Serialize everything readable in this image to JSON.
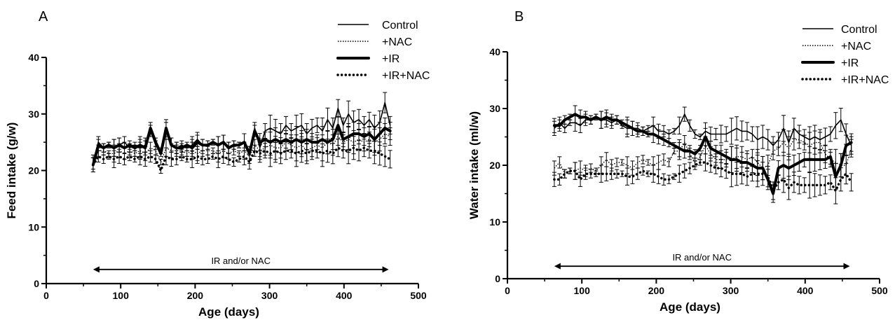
{
  "chart_data": [
    {
      "type": "line",
      "panel_label": "A",
      "xlabel": "Age (days)",
      "ylabel": "Feed  intake (g/w)",
      "xlim": [
        0,
        500
      ],
      "ylim": [
        0,
        40
      ],
      "xticks": [
        0,
        100,
        200,
        300,
        400,
        500
      ],
      "yticks": [
        0,
        10,
        20,
        30,
        40
      ],
      "legend_position": "top-right",
      "annotation": {
        "text": "IR and/or NAC",
        "x_range": [
          63,
          460
        ],
        "y": 2.5
      },
      "series": [
        {
          "name": "Control",
          "style": "solid-thin",
          "x": [
            63,
            70,
            77,
            84,
            91,
            98,
            105,
            112,
            119,
            126,
            133,
            140,
            147,
            154,
            161,
            168,
            175,
            182,
            189,
            196,
            203,
            210,
            217,
            224,
            231,
            238,
            245,
            252,
            259,
            266,
            273,
            280,
            287,
            294,
            301,
            308,
            315,
            322,
            329,
            336,
            343,
            350,
            357,
            364,
            371,
            378,
            385,
            392,
            399,
            406,
            413,
            420,
            427,
            434,
            441,
            448,
            455,
            462
          ],
          "y": [
            21.5,
            25,
            24,
            24.5,
            24,
            24.5,
            25,
            24,
            24.5,
            24,
            24.5,
            27,
            24.5,
            23.5,
            27,
            24.5,
            24,
            24.5,
            24,
            24.5,
            25.5,
            24.5,
            24.5,
            25,
            24.5,
            25,
            24,
            24.5,
            24.5,
            25,
            23,
            27.5,
            24,
            27,
            27.5,
            27,
            26.5,
            28,
            27,
            27.5,
            28,
            26.5,
            27.5,
            28,
            27,
            29,
            27.5,
            31,
            28,
            30,
            28.5,
            29,
            28,
            29,
            27.5,
            28.5,
            32,
            28
          ]
        },
        {
          "name": "+NAC",
          "style": "dotted-thin",
          "x": [
            63,
            70,
            77,
            84,
            91,
            98,
            105,
            112,
            119,
            126,
            133,
            140,
            147,
            154,
            161,
            168,
            175,
            182,
            189,
            196,
            203,
            210,
            217,
            224,
            231,
            238,
            245,
            252,
            259,
            266,
            273,
            280,
            287,
            294,
            301,
            308,
            315,
            322,
            329,
            336,
            343,
            350,
            357,
            364,
            371,
            378,
            385,
            392,
            399,
            406,
            413,
            420,
            427,
            434,
            441,
            448,
            455,
            462
          ],
          "y": [
            21,
            23.5,
            23.5,
            23,
            23,
            23.5,
            23,
            23.5,
            23,
            23.5,
            23,
            24,
            23.5,
            21.5,
            24,
            23.5,
            23.5,
            23.5,
            23,
            23.5,
            23,
            23.5,
            23.5,
            23.5,
            23,
            23.5,
            23,
            23.5,
            23,
            23.5,
            22.5,
            24.5,
            23.5,
            24,
            24.5,
            24,
            24,
            25,
            24.5,
            24,
            24.5,
            23.5,
            24,
            24.5,
            24,
            25,
            24.5,
            26,
            25,
            25.5,
            25,
            25.5,
            25,
            25.5,
            25,
            25.5,
            26.5,
            26
          ]
        },
        {
          "name": "+IR",
          "style": "solid-thick",
          "x": [
            63,
            70,
            77,
            84,
            91,
            98,
            105,
            112,
            119,
            126,
            133,
            140,
            147,
            154,
            161,
            168,
            175,
            182,
            189,
            196,
            203,
            210,
            217,
            224,
            231,
            238,
            245,
            252,
            259,
            266,
            273,
            280,
            287,
            294,
            301,
            308,
            315,
            322,
            329,
            336,
            343,
            350,
            357,
            364,
            371,
            378,
            385,
            392,
            399,
            406,
            413,
            420,
            427,
            434,
            441,
            448,
            455,
            462
          ],
          "y": [
            21,
            24.5,
            24,
            24.5,
            24,
            24.5,
            24,
            24.5,
            24,
            24.5,
            24,
            27.5,
            25,
            23,
            27.5,
            24.5,
            24,
            24,
            24.5,
            24,
            25,
            24.5,
            24.5,
            25,
            24.5,
            25,
            24,
            24.5,
            24.5,
            25,
            23,
            27,
            25,
            25.5,
            25,
            25.5,
            25,
            25.5,
            25,
            25.5,
            25,
            25.5,
            25,
            25,
            25.5,
            25,
            25.5,
            28,
            25.5,
            26,
            26.5,
            26.5,
            26,
            26.5,
            25.5,
            26.5,
            27.5,
            27
          ]
        },
        {
          "name": "+IR+NAC",
          "style": "dotted-thick",
          "x": [
            63,
            70,
            77,
            84,
            91,
            98,
            105,
            112,
            119,
            126,
            133,
            140,
            147,
            154,
            161,
            168,
            175,
            182,
            189,
            196,
            203,
            210,
            217,
            224,
            231,
            238,
            245,
            252,
            259,
            266,
            273,
            280,
            287,
            294,
            301,
            308,
            315,
            322,
            329,
            336,
            343,
            350,
            357,
            364,
            371,
            378,
            385,
            392,
            399,
            406,
            413,
            420,
            427,
            434,
            441,
            448,
            455,
            462
          ],
          "y": [
            21,
            22.5,
            22,
            22.5,
            22,
            22.5,
            22,
            22.5,
            22,
            22.5,
            22,
            22.5,
            22,
            20,
            22.5,
            22,
            22,
            22.5,
            22,
            22,
            22.5,
            22,
            22,
            22.5,
            22,
            22.5,
            22,
            21.5,
            22,
            22.5,
            21.5,
            23.5,
            23,
            23.5,
            23,
            23.5,
            23,
            23.5,
            23.5,
            23,
            23.5,
            23,
            23.5,
            23.5,
            23,
            23.5,
            23,
            24,
            23.5,
            23.5,
            24,
            23.5,
            24,
            23.5,
            23.5,
            23,
            22.5,
            22
          ]
        }
      ]
    },
    {
      "type": "line",
      "panel_label": "B",
      "xlabel": "Age (days)",
      "ylabel": "Water intake (ml/w)",
      "xlim": [
        0,
        500
      ],
      "ylim": [
        0,
        40
      ],
      "xticks": [
        0,
        100,
        200,
        300,
        400,
        500
      ],
      "yticks": [
        0,
        10,
        20,
        30,
        40
      ],
      "legend_position": "top-right",
      "annotation": {
        "text": "IR and/or NAC",
        "x_range": [
          63,
          460
        ],
        "y": 2.2
      },
      "series": [
        {
          "name": "Control",
          "style": "solid-thin",
          "x": [
            63,
            70,
            77,
            84,
            91,
            98,
            105,
            112,
            119,
            126,
            133,
            140,
            147,
            154,
            161,
            168,
            175,
            182,
            189,
            196,
            203,
            210,
            217,
            224,
            231,
            238,
            245,
            252,
            259,
            266,
            273,
            280,
            287,
            294,
            301,
            308,
            315,
            322,
            329,
            336,
            343,
            350,
            357,
            364,
            371,
            378,
            385,
            392,
            399,
            406,
            413,
            420,
            427,
            434,
            441,
            448,
            455,
            462
          ],
          "y": [
            26.5,
            27.5,
            26.5,
            27.5,
            27.5,
            27,
            28,
            28,
            28.5,
            28,
            28,
            27.5,
            28,
            27,
            26.5,
            26.5,
            26.5,
            26,
            26.5,
            27,
            26,
            26,
            25.5,
            26,
            27,
            29,
            27,
            25.5,
            25,
            26,
            25.5,
            25.5,
            25.5,
            25.5,
            26,
            26.5,
            26,
            26,
            25.5,
            24.5,
            25,
            24.5,
            23.5,
            24.5,
            26.5,
            24,
            26.5,
            25.5,
            25,
            24.5,
            25,
            24.5,
            25,
            25.5,
            27,
            28,
            25.5,
            23.5
          ]
        },
        {
          "name": "+NAC",
          "style": "dotted-thin",
          "x": [
            63,
            70,
            77,
            84,
            91,
            98,
            105,
            112,
            119,
            126,
            133,
            140,
            147,
            154,
            161,
            168,
            175,
            182,
            189,
            196,
            203,
            210,
            217,
            224,
            231,
            238,
            245,
            252,
            259,
            266,
            273,
            280,
            287,
            294,
            301,
            308,
            315,
            322,
            329,
            336,
            343,
            350,
            357,
            364,
            371,
            378,
            385,
            392,
            399,
            406,
            413,
            420,
            427,
            434,
            441,
            448,
            455,
            462
          ],
          "y": [
            19.5,
            20.5,
            18.5,
            19,
            19,
            19.5,
            19,
            19.5,
            19,
            20,
            21,
            20,
            20.5,
            20.5,
            20,
            19.5,
            20.5,
            21,
            20.5,
            20,
            20.5,
            21,
            20.5,
            22.5,
            22.5,
            24,
            22,
            20.5,
            21.5,
            23.5,
            22,
            21,
            21,
            21,
            21,
            21.5,
            21.5,
            21,
            21.5,
            20.5,
            19.5,
            20,
            22.5,
            23,
            24,
            23,
            24.5,
            24.5,
            24,
            23.5,
            24,
            24,
            22,
            21,
            20.5,
            20,
            20,
            23
          ]
        },
        {
          "name": "+IR",
          "style": "solid-thick",
          "x": [
            63,
            70,
            77,
            84,
            91,
            98,
            105,
            112,
            119,
            126,
            133,
            140,
            147,
            154,
            161,
            168,
            175,
            182,
            189,
            196,
            203,
            210,
            217,
            224,
            231,
            238,
            245,
            252,
            259,
            266,
            273,
            280,
            287,
            294,
            301,
            308,
            315,
            322,
            329,
            336,
            343,
            350,
            357,
            364,
            371,
            378,
            385,
            392,
            399,
            406,
            413,
            420,
            427,
            434,
            441,
            448,
            455,
            462
          ],
          "y": [
            27,
            27,
            28,
            28.5,
            29,
            28.5,
            28.5,
            28,
            28.5,
            28,
            28.5,
            28,
            28,
            27.5,
            27,
            26.5,
            26,
            26,
            25.5,
            25.5,
            25,
            24.5,
            24,
            23.5,
            23,
            22.5,
            22.5,
            22,
            23,
            25,
            23,
            22.5,
            22,
            21.5,
            21,
            21,
            20.5,
            20.5,
            20,
            19.5,
            19.5,
            17.5,
            15,
            19.5,
            20,
            19.5,
            20,
            20.5,
            21,
            21,
            21,
            21,
            21,
            21.5,
            18,
            20,
            23.5,
            24
          ]
        },
        {
          "name": "+IR+NAC",
          "style": "dotted-thick",
          "x": [
            63,
            70,
            77,
            84,
            91,
            98,
            105,
            112,
            119,
            126,
            133,
            140,
            147,
            154,
            161,
            168,
            175,
            182,
            189,
            196,
            203,
            210,
            217,
            224,
            231,
            238,
            245,
            252,
            259,
            266,
            273,
            280,
            287,
            294,
            301,
            308,
            315,
            322,
            329,
            336,
            343,
            350,
            357,
            364,
            371,
            378,
            385,
            392,
            399,
            406,
            413,
            420,
            427,
            434,
            441,
            448,
            455,
            462
          ],
          "y": [
            17.5,
            17.5,
            18.5,
            19,
            19,
            17.5,
            18.5,
            18.5,
            18.5,
            18.5,
            18.5,
            18.5,
            18.5,
            18.5,
            18,
            18,
            18.5,
            19,
            18.5,
            18.5,
            18,
            17.5,
            17.5,
            18,
            18.5,
            19,
            19.5,
            20,
            20.5,
            20.5,
            20,
            19.5,
            19.5,
            19,
            18.5,
            18.5,
            18.5,
            18,
            18.5,
            18.5,
            18.5,
            18,
            15.5,
            17,
            17.5,
            16,
            17,
            16.5,
            16.5,
            16.5,
            16.5,
            16.5,
            16.5,
            17,
            15.5,
            17.5,
            18.5,
            17
          ]
        }
      ]
    }
  ]
}
